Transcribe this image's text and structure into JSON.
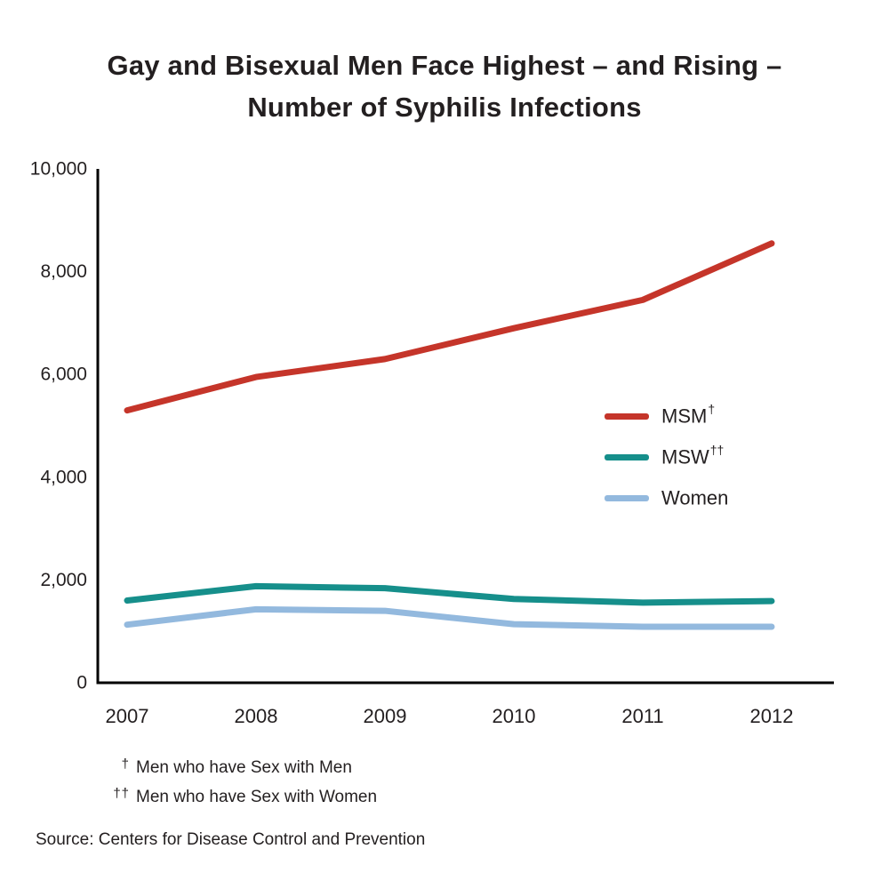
{
  "title": {
    "line1": "Gay and Bisexual Men Face Highest – and Rising –",
    "line2": "Number of Syphilis Infections"
  },
  "chart_data": {
    "type": "line",
    "categories": [
      "2007",
      "2008",
      "2009",
      "2010",
      "2011",
      "2012"
    ],
    "series": [
      {
        "name": "MSM",
        "sup": "†",
        "color": "#c5352a",
        "values": [
          5300,
          5950,
          6300,
          6900,
          7450,
          8550
        ]
      },
      {
        "name": "MSW",
        "sup": "††",
        "color": "#168f8b",
        "values": [
          1600,
          1880,
          1840,
          1630,
          1560,
          1590
        ]
      },
      {
        "name": "Women",
        "sup": "",
        "color": "#93b9de",
        "values": [
          1130,
          1430,
          1400,
          1140,
          1090,
          1090
        ]
      }
    ],
    "ylim": [
      0,
      10000
    ],
    "y_ticks": [
      0,
      2000,
      4000,
      6000,
      8000,
      10000
    ],
    "y_tick_labels": [
      "0",
      "2,000",
      "4,000",
      "6,000",
      "8,000",
      "10,000"
    ],
    "xlabel": "",
    "ylabel": "",
    "grid": false,
    "legend_position": "middle-right",
    "axis_color": "#000000"
  },
  "footnotes": [
    {
      "mark": "†",
      "text": "Men who have Sex with Men"
    },
    {
      "mark": "††",
      "text": "Men who have Sex with Women"
    }
  ],
  "source": "Source: Centers for Disease Control and Prevention"
}
